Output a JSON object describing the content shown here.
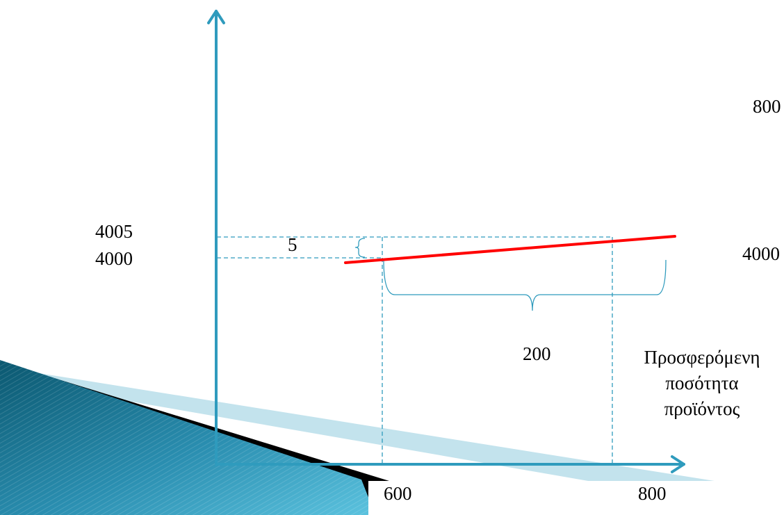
{
  "diagram": {
    "y_labels": {
      "top": "4005",
      "bottom": "4000"
    },
    "delta_y_label": "5",
    "delta_x_label": "200",
    "x_labels": {
      "left": "600",
      "right": "800"
    },
    "x_axis_title": [
      "Προσφερόμενη",
      "ποσότητα",
      "προϊόντος"
    ],
    "right_labels": {
      "top": "800",
      "middle": "4000"
    },
    "colors": {
      "axis": "#2f9bbd",
      "supply_line": "#ff0000",
      "guide": "#2f9bbd",
      "decor_dark": "#0c5f7a",
      "decor_light": "#4ab5d3",
      "decor_black": "#000000"
    }
  }
}
